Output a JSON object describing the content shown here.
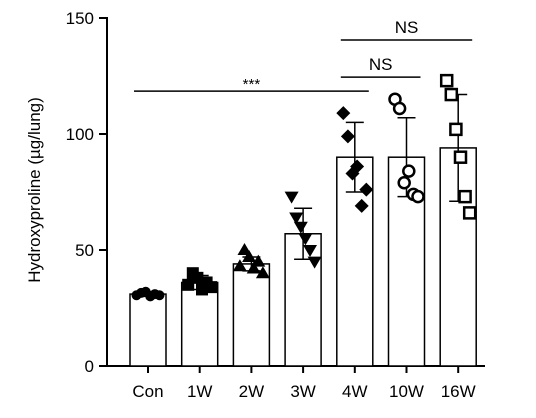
{
  "chart_data": {
    "type": "bar",
    "ylabel": "Hydroxyproline (µg/lung)",
    "ylim": [
      0,
      150
    ],
    "yticks": [
      "0",
      "50",
      "100",
      "150"
    ],
    "categories": [
      "Con",
      "1W",
      "2W",
      "3W",
      "4W",
      "10W",
      "16W"
    ],
    "values": [
      31,
      36,
      44,
      57,
      90,
      90,
      94
    ],
    "errors": [
      1,
      3,
      3,
      11,
      15,
      17,
      23
    ],
    "markers": [
      "circle-filled",
      "square-filled",
      "triangle-filled",
      "triangle-down-filled",
      "diamond-filled",
      "circle-open",
      "square-open"
    ],
    "points": [
      [
        30.5,
        31.5,
        32.0,
        30.0,
        31.0,
        30.5
      ],
      [
        35.0,
        40.0,
        38.0,
        33.0,
        36.0,
        34.0
      ],
      [
        43.0,
        50.0,
        47.0,
        42.0,
        45.0,
        40.0
      ],
      [
        73.0,
        64.0,
        60.0,
        55.0,
        50.0,
        45.0
      ],
      [
        109.0,
        99.0,
        83.0,
        86.0,
        69.0,
        76.0
      ],
      [
        115.0,
        111.0,
        79.0,
        84.0,
        74.0,
        73.0
      ],
      [
        123.0,
        117.0,
        102.0,
        90.0,
        73.0,
        66.0
      ]
    ],
    "annotations": [
      {
        "text": "***",
        "from": "Con",
        "to": "4W",
        "y": 118.5
      },
      {
        "text": "NS",
        "from": "4W",
        "to": "10W",
        "y": 124.5
      },
      {
        "text": "NS",
        "from": "4W",
        "to": "16W",
        "y": 140.5
      }
    ],
    "grid": false
  }
}
